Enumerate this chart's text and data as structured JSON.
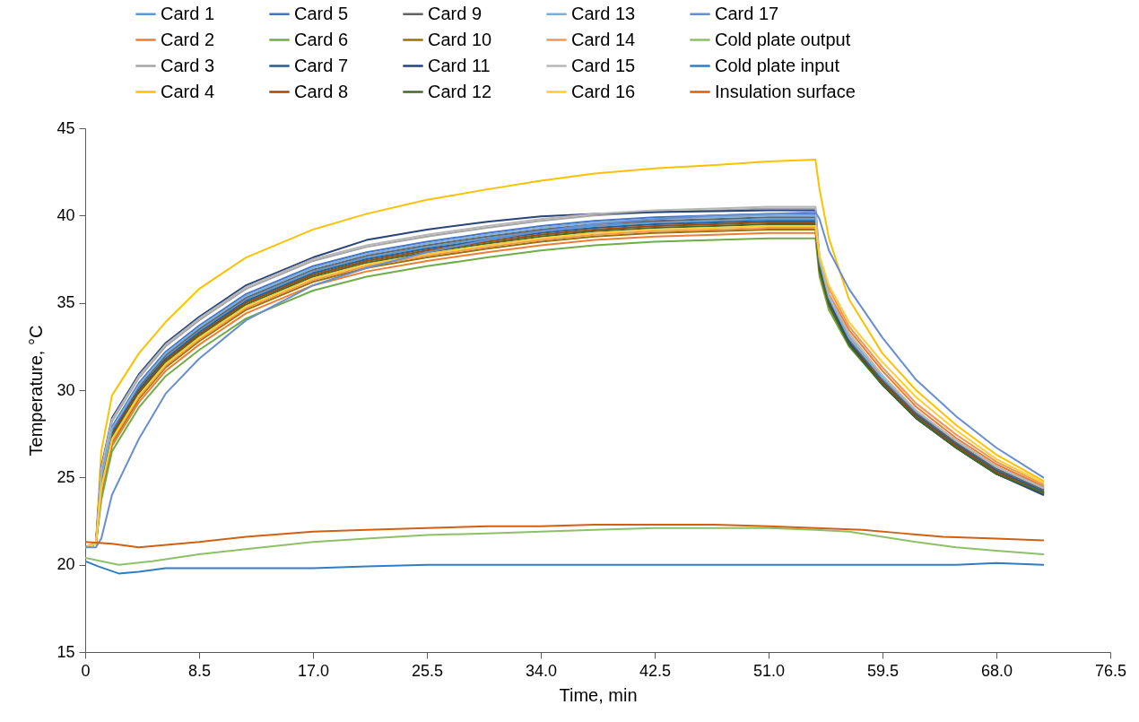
{
  "chart_data": {
    "type": "line",
    "xlabel": "Time, min",
    "ylabel": "Temperature, °C",
    "xlim": [
      0,
      76.5
    ],
    "xticks": [
      0,
      8.5,
      {
        "value": 17,
        "label": "17.0"
      },
      25.5,
      {
        "value": 34,
        "label": "34.0"
      },
      42.5,
      {
        "value": 51,
        "label": "51.0"
      },
      59.5,
      {
        "value": 68,
        "label": "68.0"
      },
      76.5
    ],
    "ylim": [
      15,
      45
    ],
    "yticks": [
      15,
      20,
      25,
      30,
      35,
      40,
      45
    ],
    "grid": false,
    "legend": "top",
    "x": [
      0,
      0.8,
      1.2,
      2,
      4,
      6,
      8.5,
      12,
      17,
      21,
      25.5,
      30,
      34,
      38,
      42.5,
      47,
      51,
      54.5,
      54.8,
      55.5,
      57,
      59.5,
      62,
      65,
      68,
      71.5
    ],
    "series": [
      {
        "name": "Card 1",
        "color": "#5b9bd5",
        "values": [
          21,
          21.2,
          24.8,
          27.6,
          30.1,
          31.9,
          33.4,
          35.2,
          36.8,
          37.6,
          38.2,
          38.7,
          39.1,
          39.4,
          39.6,
          39.7,
          39.8,
          39.8,
          37.2,
          35.2,
          33,
          30.7,
          28.8,
          27.1,
          25.6,
          24.4
        ]
      },
      {
        "name": "Card 2",
        "color": "#ed7d31",
        "values": [
          21,
          21.2,
          24,
          26.8,
          29.3,
          31.1,
          32.6,
          34.4,
          36,
          36.8,
          37.4,
          37.9,
          38.3,
          38.6,
          38.8,
          38.9,
          39,
          39,
          37.4,
          35.5,
          33.45,
          31.1,
          29.05,
          27.25,
          25.75,
          24.5
        ]
      },
      {
        "name": "Card 3",
        "color": "#a5a5a5",
        "values": [
          21,
          21.2,
          25.4,
          28.2,
          30.7,
          32.5,
          34,
          35.8,
          37.4,
          38.2,
          38.8,
          39.3,
          39.7,
          40,
          40.2,
          40.3,
          40.4,
          40.4,
          37.5,
          35.4,
          33.1,
          30.7,
          28.7,
          27,
          25.5,
          24.3
        ]
      },
      {
        "name": "Card 4",
        "color": "#ffc000",
        "values": [
          21,
          21.3,
          26.5,
          29.7,
          32.1,
          33.9,
          35.8,
          37.6,
          39.2,
          40.1,
          40.9,
          41.5,
          42,
          42.4,
          42.7,
          42.9,
          43.1,
          43.2,
          41.5,
          38.7,
          35.2,
          32.1,
          30,
          28,
          26.3,
          24.8
        ]
      },
      {
        "name": "Card 5",
        "color": "#4472c4",
        "values": [
          21,
          21.2,
          25.1,
          27.9,
          30.4,
          32.2,
          33.7,
          35.5,
          37.1,
          37.9,
          38.5,
          39,
          39.4,
          39.7,
          39.9,
          40,
          40.1,
          40.1,
          37.3,
          35.2,
          32.9,
          30.5,
          28.6,
          26.9,
          25.4,
          24.2
        ]
      },
      {
        "name": "Card 6",
        "color": "#70ad47",
        "values": [
          21,
          21.2,
          23.7,
          26.5,
          29,
          30.8,
          32.3,
          34.1,
          35.7,
          36.5,
          37.1,
          37.6,
          38,
          38.3,
          38.5,
          38.6,
          38.7,
          38.7,
          36.5,
          34.6,
          32.5,
          30.3,
          28.4,
          26.7,
          25.2,
          24.1
        ]
      },
      {
        "name": "Card 7",
        "color": "#255e91",
        "values": [
          21,
          21.2,
          24.7,
          27.5,
          30,
          31.8,
          33.3,
          35.1,
          36.7,
          37.5,
          38.1,
          38.6,
          39,
          39.3,
          39.5,
          39.6,
          39.7,
          39.7,
          37,
          35,
          32.8,
          30.5,
          28.6,
          26.9,
          25.4,
          24.2
        ]
      },
      {
        "name": "Card 8",
        "color": "#9e480e",
        "values": [
          21,
          21.2,
          24.6,
          27.4,
          29.9,
          31.7,
          33.2,
          35,
          36.6,
          37.4,
          38,
          38.5,
          38.9,
          39.2,
          39.4,
          39.5,
          39.6,
          39.6,
          36.9,
          34.9,
          32.7,
          30.4,
          28.5,
          26.8,
          25.3,
          24.1
        ]
      },
      {
        "name": "Card 9",
        "color": "#636363",
        "values": [
          21,
          21.2,
          24.9,
          27.7,
          30.2,
          32,
          33.5,
          35.3,
          36.9,
          37.7,
          38.3,
          38.8,
          39.2,
          39.5,
          39.7,
          39.8,
          39.9,
          39.9,
          37.1,
          35.1,
          32.9,
          30.6,
          28.7,
          27,
          25.5,
          24.3
        ]
      },
      {
        "name": "Card 10",
        "color": "#997300",
        "values": [
          21,
          21.2,
          24.2,
          27,
          29.5,
          31.3,
          32.8,
          34.6,
          36.2,
          37,
          37.6,
          38.1,
          38.5,
          38.8,
          39,
          39.1,
          39.2,
          39.2,
          36.8,
          34.8,
          32.6,
          30.3,
          28.4,
          26.7,
          25.2,
          24.1
        ]
      },
      {
        "name": "Card 11",
        "color": "#264478",
        "values": [
          21,
          21.2,
          25.6,
          28.4,
          30.9,
          32.7,
          34.2,
          36,
          37.6,
          38.6,
          39.2,
          39.65,
          39.95,
          40.1,
          40.2,
          40.25,
          40.3,
          40.3,
          37.2,
          35,
          32.7,
          30.3,
          28.4,
          26.7,
          25.2,
          24
        ]
      },
      {
        "name": "Card 12",
        "color": "#43682b",
        "values": [
          21,
          21.2,
          24.5,
          27.3,
          29.8,
          31.6,
          33.1,
          34.9,
          36.5,
          37.3,
          37.9,
          38.4,
          38.8,
          39.1,
          39.3,
          39.4,
          39.5,
          39.5,
          36.9,
          34.9,
          32.6,
          30.3,
          28.4,
          26.7,
          25.2,
          24.1
        ]
      },
      {
        "name": "Card 13",
        "color": "#7cafdd",
        "values": [
          21,
          21.2,
          25,
          27.8,
          30.3,
          32.1,
          33.6,
          35.4,
          37,
          37.8,
          38.4,
          38.9,
          39.3,
          39.6,
          39.8,
          39.9,
          40,
          40,
          37.4,
          35.3,
          33,
          30.7,
          28.8,
          27.1,
          25.6,
          24.4
        ]
      },
      {
        "name": "Card 14",
        "color": "#f1975a",
        "values": [
          21,
          21.2,
          24.3,
          27.1,
          29.6,
          31.4,
          32.9,
          34.7,
          36.3,
          37.1,
          37.7,
          38.2,
          38.6,
          38.9,
          39.1,
          39.2,
          39.3,
          39.3,
          37.6,
          35.8,
          33.65,
          31.3,
          29.25,
          27.45,
          25.9,
          24.6
        ]
      },
      {
        "name": "Card 15",
        "color": "#b7b7b7",
        "values": [
          21,
          21.2,
          25.5,
          28.3,
          30.8,
          32.6,
          34.1,
          35.9,
          37.5,
          38.3,
          38.9,
          39.4,
          39.8,
          40.1,
          40.3,
          40.4,
          40.5,
          40.5,
          37.6,
          35.4,
          33.25,
          30.85,
          28.85,
          27.1,
          25.6,
          24.4
        ]
      },
      {
        "name": "Card 16",
        "color": "#ffcd33",
        "values": [
          21,
          21.2,
          24.4,
          27.2,
          29.7,
          31.5,
          33,
          34.8,
          36.4,
          37.2,
          37.8,
          38.3,
          38.7,
          39,
          39.2,
          39.3,
          39.4,
          39.4,
          37.7,
          36,
          33.9,
          31.6,
          29.6,
          27.7,
          26.05,
          24.7
        ]
      },
      {
        "name": "Card 17",
        "color": "#698ed0",
        "values": [
          21,
          21,
          21.5,
          24,
          27.2,
          29.8,
          31.8,
          34,
          36,
          37,
          37.9,
          38.6,
          39.1,
          39.5,
          39.8,
          40,
          40.1,
          40.2,
          39.8,
          38,
          35.8,
          33,
          30.6,
          28.5,
          26.7,
          25
        ]
      },
      {
        "name": "Cold plate output",
        "color": "#8cc168",
        "x": [
          0,
          2.5,
          5,
          8.5,
          12,
          17,
          21,
          25.5,
          30,
          34,
          38,
          42.5,
          47,
          51,
          54.5,
          57,
          59.5,
          62,
          65,
          68,
          71.5
        ],
        "values": [
          20.4,
          20,
          20.2,
          20.6,
          20.9,
          21.3,
          21.5,
          21.7,
          21.8,
          21.9,
          22,
          22.1,
          22.1,
          22.1,
          22,
          21.9,
          21.6,
          21.3,
          21,
          20.8,
          20.6
        ]
      },
      {
        "name": "Cold plate input",
        "color": "#327dc2",
        "x": [
          0,
          1,
          2.5,
          4,
          6,
          10,
          17,
          21,
          25.5,
          34,
          42.5,
          51,
          59.5,
          65,
          68,
          71.5
        ],
        "values": [
          20.2,
          19.9,
          19.5,
          19.6,
          19.8,
          19.8,
          19.8,
          19.9,
          20,
          20,
          20,
          20,
          20,
          20,
          20.1,
          20
        ]
      },
      {
        "name": "Insulation surface",
        "color": "#d26012",
        "x": [
          0,
          2,
          4,
          8.5,
          12,
          17,
          21,
          25.5,
          30,
          34,
          38,
          42.5,
          47,
          51,
          54.5,
          58,
          61,
          64,
          68,
          71.5
        ],
        "values": [
          21.3,
          21.2,
          21.0,
          21.3,
          21.6,
          21.9,
          22,
          22.1,
          22.2,
          22.2,
          22.3,
          22.3,
          22.3,
          22.2,
          22.1,
          22,
          21.8,
          21.6,
          21.5,
          21.4
        ]
      }
    ]
  }
}
